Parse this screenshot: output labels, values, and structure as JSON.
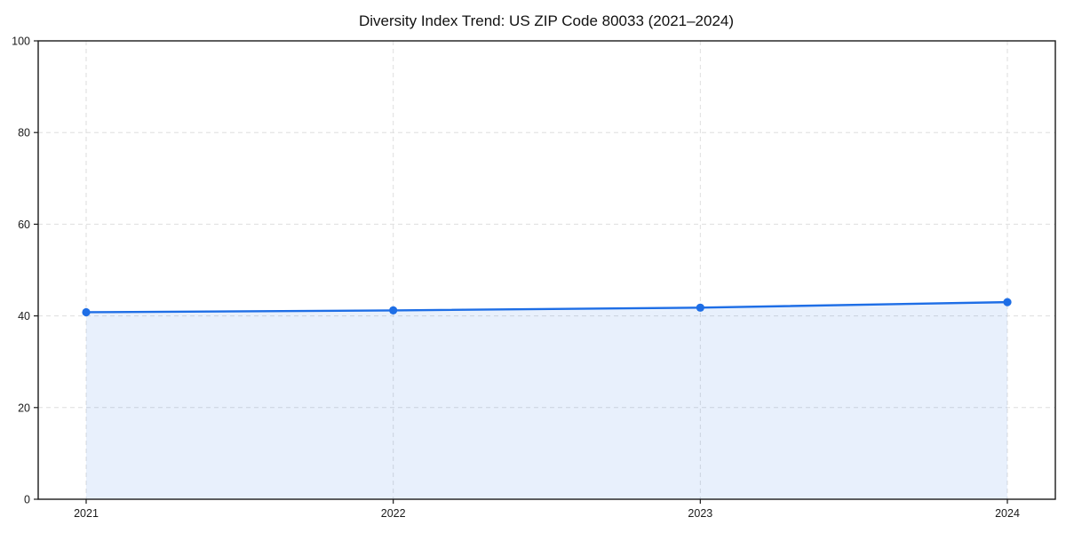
{
  "chart_data": {
    "type": "area",
    "title": "Diversity Index Trend: US ZIP Code 80033 (2021–2024)",
    "categories": [
      "2021",
      "2022",
      "2023",
      "2024"
    ],
    "values": [
      40.8,
      41.2,
      41.8,
      43.0
    ],
    "xlabel": "",
    "ylabel": "",
    "ylim": [
      0,
      100
    ],
    "yticks": [
      0,
      20,
      40,
      60,
      80,
      100
    ],
    "grid": "dashed-both-axes",
    "legend": "none",
    "marker": "circle",
    "colors": {
      "line": "#1e6ee6",
      "marker": "#1e6ee6",
      "fill": "#1e6ee6",
      "fill_opacity": "0.1",
      "grid": "#dedede",
      "axis": "#1a1a1a",
      "text": "#1a1a1a",
      "background": "#ffffff"
    }
  }
}
